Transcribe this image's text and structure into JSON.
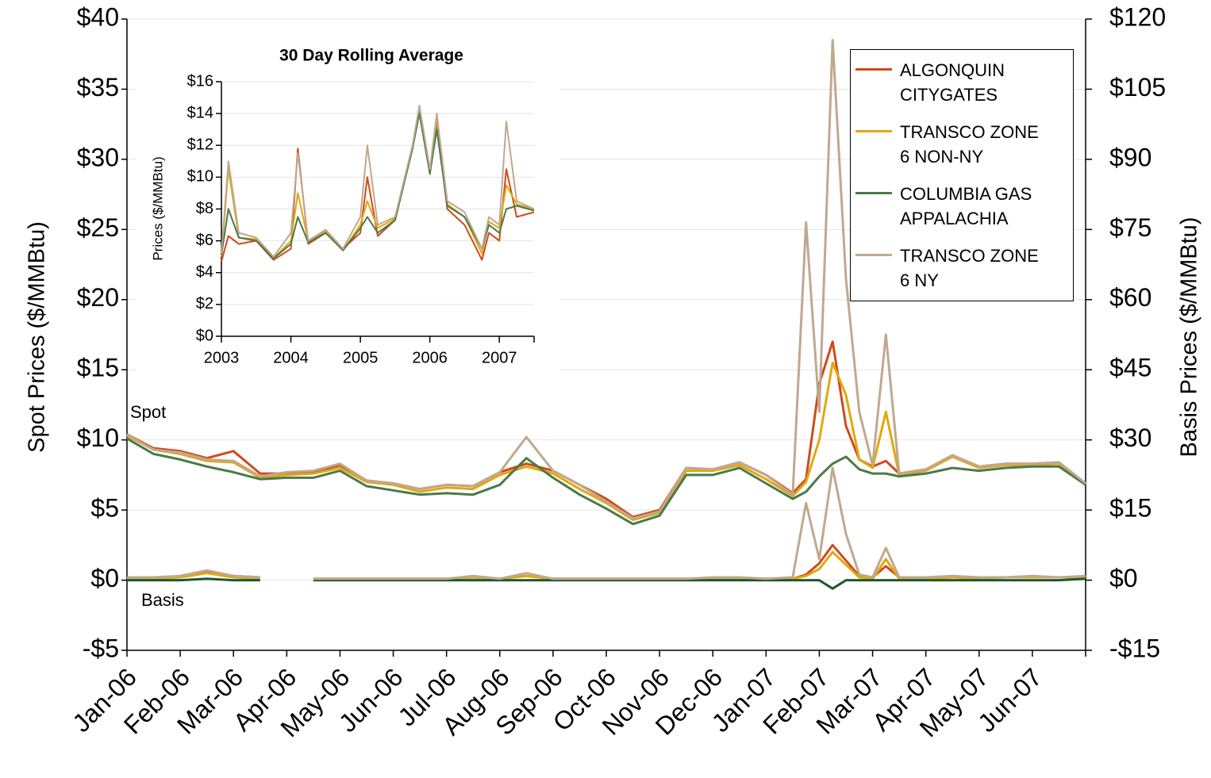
{
  "chart_data": [
    {
      "type": "line",
      "y_label": "Spot Prices ($/MMBtu)",
      "y2_label": "Basis Prices ($/MMBtu)",
      "annotations": [
        "Spot",
        "Basis"
      ],
      "xlim": [
        0,
        18
      ],
      "xticks": [
        {
          "value": 0,
          "label": "Jan-06"
        },
        {
          "value": 1,
          "label": "Feb-06"
        },
        {
          "value": 2,
          "label": "Mar-06"
        },
        {
          "value": 3,
          "label": "Apr-06"
        },
        {
          "value": 4,
          "label": "May-06"
        },
        {
          "value": 5,
          "label": "Jun-06"
        },
        {
          "value": 6,
          "label": "Jul-06"
        },
        {
          "value": 7,
          "label": "Aug-06"
        },
        {
          "value": 8,
          "label": "Sep-06"
        },
        {
          "value": 9,
          "label": "Oct-06"
        },
        {
          "value": 10,
          "label": "Nov-06"
        },
        {
          "value": 11,
          "label": "Dec-06"
        },
        {
          "value": 12,
          "label": "Jan-07"
        },
        {
          "value": 13,
          "label": "Feb-07"
        },
        {
          "value": 14,
          "label": "Mar-07"
        },
        {
          "value": 15,
          "label": "Apr-07"
        },
        {
          "value": 16,
          "label": "May-07"
        },
        {
          "value": 17,
          "label": "Jun-07"
        }
      ],
      "ylim": [
        -5,
        40
      ],
      "yticks": [
        {
          "value": -5,
          "label": "-$5"
        },
        {
          "value": 0,
          "label": "$0"
        },
        {
          "value": 5,
          "label": "$5"
        },
        {
          "value": 10,
          "label": "$10"
        },
        {
          "value": 15,
          "label": "$15"
        },
        {
          "value": 20,
          "label": "$20"
        },
        {
          "value": 25,
          "label": "$25"
        },
        {
          "value": 30,
          "label": "$30"
        },
        {
          "value": 35,
          "label": "$35"
        },
        {
          "value": 40,
          "label": "$40"
        }
      ],
      "y2lim": [
        -15,
        120
      ],
      "y2ticks": [
        {
          "value": -15,
          "label": "-$15"
        },
        {
          "value": 0,
          "label": "$0"
        },
        {
          "value": 15,
          "label": "$15"
        },
        {
          "value": 30,
          "label": "$30"
        },
        {
          "value": 45,
          "label": "$45"
        },
        {
          "value": 60,
          "label": "$60"
        },
        {
          "value": 75,
          "label": "$75"
        },
        {
          "value": 90,
          "label": "$90"
        },
        {
          "value": 105,
          "label": "$105"
        },
        {
          "value": 120,
          "label": "$120"
        }
      ],
      "grid": true,
      "legend": "top-right",
      "x": [
        0,
        0.5,
        1,
        1.5,
        2,
        2.5,
        3,
        3.5,
        4,
        4.5,
        5,
        5.5,
        6,
        6.5,
        7,
        7.5,
        8,
        8.5,
        9,
        9.5,
        10,
        10.5,
        11,
        11.5,
        12,
        12.5,
        12.75,
        13,
        13.25,
        13.5,
        13.75,
        14,
        14.25,
        14.5,
        15,
        15.5,
        16,
        16.5,
        17,
        17.5,
        18
      ],
      "series": [
        {
          "name": "ALGONQUIN CITYGATES",
          "color": "#d04a1a",
          "values": [
            10.4,
            9.4,
            9.2,
            8.7,
            9.2,
            7.6,
            7.6,
            7.7,
            8.2,
            7.1,
            6.9,
            6.5,
            6.8,
            6.7,
            7.7,
            8.3,
            7.8,
            6.8,
            5.8,
            4.5,
            5.0,
            8.0,
            7.9,
            8.4,
            7.5,
            6.2,
            7.2,
            14.0,
            17.0,
            11.0,
            8.6,
            8.1,
            8.5,
            7.6,
            7.9,
            8.9,
            8.1,
            8.3,
            8.3,
            8.4,
            6.9
          ]
        },
        {
          "name": "TRANSCO ZONE 6 NON-NY",
          "color": "#e0a810",
          "values": [
            10.3,
            9.3,
            9.0,
            8.5,
            8.4,
            7.3,
            7.5,
            7.6,
            8.0,
            7.0,
            6.8,
            6.3,
            6.6,
            6.5,
            7.5,
            8.1,
            7.6,
            6.5,
            5.5,
            4.3,
            4.8,
            7.8,
            7.8,
            8.2,
            7.2,
            6.0,
            7.0,
            10.0,
            15.5,
            13.2,
            8.6,
            8.0,
            12.0,
            7.5,
            7.8,
            8.8,
            8.0,
            8.2,
            8.2,
            8.3,
            6.8
          ]
        },
        {
          "name": "COLUMBIA GAS APPALACHIA",
          "color": "#4a7a48",
          "values": [
            10.1,
            9.0,
            8.6,
            8.1,
            7.7,
            7.2,
            7.3,
            7.3,
            7.8,
            6.7,
            6.4,
            6.1,
            6.2,
            6.1,
            6.8,
            8.7,
            7.3,
            6.1,
            5.1,
            4.0,
            4.6,
            7.5,
            7.5,
            8.0,
            6.9,
            5.8,
            6.3,
            7.4,
            8.3,
            8.8,
            7.9,
            7.6,
            7.6,
            7.4,
            7.6,
            8.0,
            7.8,
            8.0,
            8.1,
            8.1,
            6.8
          ]
        },
        {
          "name": "TRANSCO ZONE 6 NY",
          "color": "#c0a890",
          "values": [
            10.4,
            9.3,
            9.1,
            8.6,
            8.5,
            7.4,
            7.7,
            7.8,
            8.3,
            7.1,
            6.9,
            6.5,
            6.8,
            6.7,
            7.7,
            10.2,
            7.8,
            6.8,
            5.6,
            4.4,
            4.9,
            8.0,
            7.9,
            8.4,
            7.5,
            6.1,
            25.5,
            12.0,
            38.5,
            21.5,
            12.0,
            8.2,
            17.5,
            7.6,
            7.9,
            8.9,
            8.1,
            8.3,
            8.3,
            8.4,
            6.9
          ]
        }
      ],
      "basis_series": [
        {
          "color": "#d04a1a",
          "values": [
            0.2,
            0.2,
            0.2,
            0.6,
            0.3,
            0.2,
            null,
            0.1,
            0.1,
            0.1,
            0.1,
            0.1,
            0.1,
            0.2,
            0.1,
            0.3,
            0.1,
            0.1,
            0.1,
            0.1,
            0.1,
            0.1,
            0.1,
            0.1,
            0.1,
            0.1,
            0.4,
            1.2,
            2.5,
            1.4,
            0.3,
            0.2,
            1.0,
            0.2,
            0.1,
            0.2,
            0.2,
            0.2,
            0.2,
            0.2,
            0.2
          ]
        },
        {
          "color": "#e0a810",
          "values": [
            0.1,
            0.1,
            0.2,
            0.5,
            0.2,
            0.1,
            null,
            0.1,
            0.1,
            0.1,
            0.1,
            0.1,
            0.1,
            0.2,
            0.1,
            0.3,
            0.1,
            0.1,
            0.1,
            0.1,
            0.1,
            0.1,
            0.1,
            0.1,
            0.1,
            0.1,
            0.3,
            0.8,
            2.0,
            1.1,
            0.2,
            0.1,
            1.5,
            0.1,
            0.1,
            0.2,
            0.1,
            0.2,
            0.2,
            0.2,
            0.2
          ]
        },
        {
          "color": "#1e5a2a",
          "values": [
            0.0,
            0.0,
            0.0,
            0.1,
            0.0,
            0.0,
            null,
            0.0,
            0.0,
            0.0,
            0.0,
            0.0,
            0.0,
            0.0,
            0.0,
            0.0,
            0.0,
            0.0,
            0.0,
            0.0,
            0.0,
            0.0,
            0.0,
            0.0,
            0.0,
            0.0,
            0.0,
            0.0,
            -0.6,
            0.0,
            0.0,
            0.0,
            0.0,
            0.0,
            0.0,
            0.0,
            0.0,
            0.0,
            0.0,
            0.0,
            0.1
          ]
        },
        {
          "color": "#c0a890",
          "values": [
            0.2,
            0.2,
            0.3,
            0.7,
            0.3,
            0.2,
            null,
            0.1,
            0.1,
            0.1,
            0.1,
            0.1,
            0.1,
            0.3,
            0.1,
            0.5,
            0.1,
            0.1,
            0.1,
            0.1,
            0.1,
            0.1,
            0.2,
            0.2,
            0.1,
            0.2,
            5.5,
            1.5,
            8.0,
            3.3,
            0.4,
            0.2,
            2.3,
            0.2,
            0.2,
            0.3,
            0.2,
            0.2,
            0.3,
            0.2,
            0.3
          ]
        }
      ]
    },
    {
      "type": "line",
      "title": "30 Day Rolling Average",
      "y_label": "Prices ($/MMBtu)",
      "xlim": [
        2003,
        2007.5
      ],
      "xticks": [
        2003,
        2004,
        2005,
        2006,
        2007
      ],
      "ylim": [
        0,
        16
      ],
      "yticks": [
        {
          "value": 0,
          "label": "$0"
        },
        {
          "value": 2,
          "label": "$2"
        },
        {
          "value": 4,
          "label": "$4"
        },
        {
          "value": 6,
          "label": "$6"
        },
        {
          "value": 8,
          "label": "$8"
        },
        {
          "value": 10,
          "label": "$10"
        },
        {
          "value": 12,
          "label": "$12"
        },
        {
          "value": 14,
          "label": "$14"
        },
        {
          "value": 16,
          "label": "$16"
        }
      ],
      "grid": true,
      "x": [
        2003,
        2003.1,
        2003.25,
        2003.5,
        2003.75,
        2004.0,
        2004.1,
        2004.25,
        2004.5,
        2004.75,
        2005.0,
        2005.1,
        2005.25,
        2005.5,
        2005.75,
        2005.85,
        2006.0,
        2006.1,
        2006.25,
        2006.5,
        2006.75,
        2006.85,
        2007.0,
        2007.1,
        2007.25,
        2007.5
      ],
      "series": [
        {
          "color": "#d04a1a",
          "values": [
            4.7,
            6.3,
            5.8,
            6.0,
            4.8,
            5.5,
            11.8,
            5.8,
            6.5,
            5.5,
            6.5,
            10.0,
            6.3,
            7.3,
            11.8,
            14.2,
            10.3,
            13.5,
            8.0,
            7.0,
            4.8,
            6.5,
            6.0,
            10.5,
            7.5,
            7.8
          ]
        },
        {
          "color": "#e0a810",
          "values": [
            5.0,
            10.5,
            6.2,
            6.1,
            4.9,
            6.0,
            9.0,
            6.0,
            6.6,
            5.4,
            7.0,
            8.5,
            6.8,
            7.4,
            11.9,
            14.3,
            10.4,
            13.7,
            8.3,
            7.5,
            5.2,
            7.2,
            6.8,
            9.5,
            8.3,
            8.0
          ]
        },
        {
          "color": "#4a7a48",
          "values": [
            5.1,
            8.0,
            6.2,
            6.0,
            4.9,
            5.8,
            7.5,
            5.9,
            6.5,
            5.4,
            6.8,
            7.5,
            6.5,
            7.3,
            11.8,
            14.0,
            10.2,
            13.0,
            8.2,
            7.5,
            5.5,
            7.0,
            6.5,
            8.0,
            8.2,
            7.9
          ]
        },
        {
          "color": "#c0a890",
          "values": [
            5.2,
            11.0,
            6.5,
            6.2,
            5.0,
            6.5,
            11.5,
            6.0,
            6.7,
            5.5,
            7.5,
            12.0,
            7.0,
            7.5,
            12.0,
            14.5,
            10.5,
            14.0,
            8.5,
            7.8,
            5.5,
            7.5,
            7.0,
            13.5,
            8.5,
            8.0
          ]
        }
      ]
    }
  ]
}
